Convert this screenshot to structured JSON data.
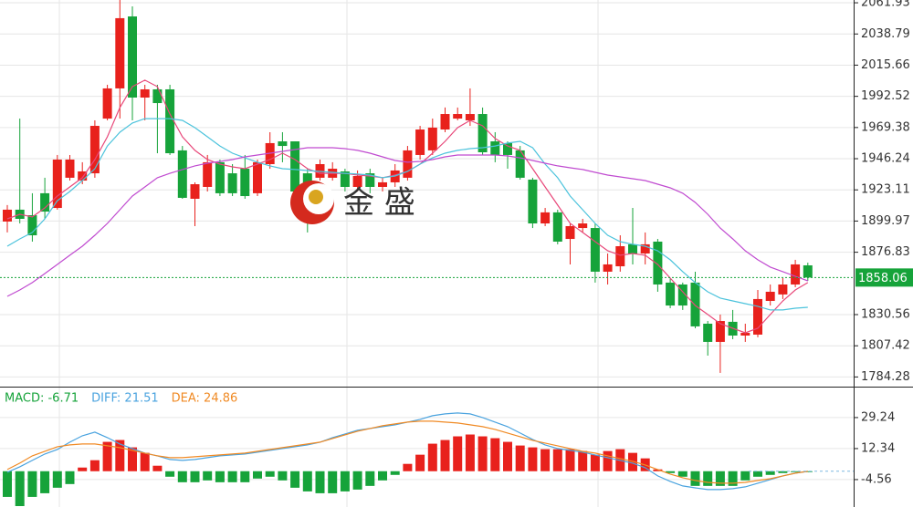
{
  "chart_data": [
    {
      "type": "candlestick",
      "up_color": "#e8211c",
      "down_color": "#16a33a",
      "open": [
        1899.6,
        1908.4,
        1904.3,
        1920.6,
        1909.7,
        1932.1,
        1930.0,
        1935.4,
        1976.0,
        1998.4,
        2051.8,
        1991.6,
        1997.7,
        1997.7,
        1952.4,
        1916.5,
        1925.3,
        1943.6,
        1935.4,
        1938.8,
        1920.6,
        1942.2,
        1959.1,
        1959.1,
        1935.4,
        1932.1,
        1932.1,
        1936.8,
        1925.3,
        1935.4,
        1925.3,
        1928.7,
        1932.1,
        1949.0,
        1952.4,
        1967.9,
        1976.0,
        1974.7,
        1979.4,
        1959.1,
        1957.8,
        1952.4,
        1930.7,
        1898.2,
        1906.4,
        1886.7,
        1894.8,
        1894.8,
        1862.4,
        1866.4,
        1882.7,
        1875.9,
        1884.7,
        1854.3,
        1852.9,
        1854.3,
        1823.8,
        1810.3,
        1825.2,
        1815.0,
        1815.7,
        1840.7,
        1845.5,
        1852.9,
        1867.1
      ],
      "high": [
        1911.8,
        1976.0,
        1920.6,
        1932.1,
        1949.0,
        1949.0,
        1943.6,
        1974.7,
        2001.1,
        2064.0,
        2059.3,
        2001.1,
        2001.1,
        2001.1,
        1955.7,
        1928.7,
        1949.0,
        1945.6,
        1942.2,
        1949.0,
        1945.6,
        1965.9,
        1965.9,
        1959.1,
        1938.8,
        1945.6,
        1943.6,
        1938.8,
        1937.5,
        1938.8,
        1932.1,
        1942.2,
        1955.7,
        1970.6,
        1976.0,
        1984.2,
        1984.2,
        1998.4,
        1984.2,
        1965.9,
        1959.1,
        1955.7,
        1932.1,
        1909.7,
        1908.4,
        1898.2,
        1901.6,
        1898.2,
        1875.9,
        1889.4,
        1909.7,
        1891.5,
        1886.7,
        1857.6,
        1854.3,
        1862.4,
        1825.8,
        1830.6,
        1834.0,
        1823.8,
        1848.8,
        1852.9,
        1857.6,
        1871.2,
        1869.1
      ],
      "low": [
        1891.5,
        1898.2,
        1884.7,
        1901.6,
        1908.4,
        1930.0,
        1927.3,
        1932.1,
        1974.7,
        1976.0,
        1974.7,
        1974.7,
        1950.3,
        1949.0,
        1916.5,
        1896.2,
        1921.9,
        1918.5,
        1918.5,
        1916.5,
        1918.5,
        1938.8,
        1943.6,
        1920.6,
        1891.5,
        1930.0,
        1930.0,
        1921.9,
        1921.9,
        1920.6,
        1921.9,
        1925.3,
        1930.0,
        1945.6,
        1949.0,
        1965.9,
        1974.7,
        1970.6,
        1949.0,
        1943.6,
        1938.8,
        1930.7,
        1894.8,
        1896.2,
        1882.7,
        1867.8,
        1891.5,
        1854.3,
        1852.9,
        1862.4,
        1867.8,
        1867.8,
        1847.5,
        1835.3,
        1834.0,
        1820.4,
        1800.1,
        1787.3,
        1812.3,
        1810.3,
        1813.7,
        1837.3,
        1842.1,
        1850.9,
        1855.6
      ],
      "close": [
        1908.4,
        1901.6,
        1889.4,
        1907.0,
        1945.6,
        1945.6,
        1936.8,
        1970.6,
        1998.4,
        2050.5,
        1991.6,
        1997.7,
        1987.5,
        1950.3,
        1917.2,
        1927.3,
        1943.6,
        1920.6,
        1920.6,
        1918.5,
        1943.6,
        1957.8,
        1955.7,
        1921.9,
        1907.0,
        1942.2,
        1938.8,
        1925.3,
        1933.4,
        1925.3,
        1928.7,
        1937.5,
        1952.4,
        1967.9,
        1969.3,
        1979.4,
        1979.4,
        1979.4,
        1951.0,
        1949.0,
        1949.0,
        1932.1,
        1898.2,
        1906.4,
        1884.7,
        1896.2,
        1898.2,
        1862.4,
        1867.8,
        1881.3,
        1875.9,
        1882.7,
        1852.9,
        1837.3,
        1837.3,
        1821.8,
        1810.3,
        1825.8,
        1815.0,
        1817.0,
        1842.1,
        1847.5,
        1852.9,
        1867.8,
        1858.06
      ],
      "series": [
        {
          "color": "#e8487a",
          "values": [
            1901.6,
            1905.0,
            1903.0,
            1909.7,
            1918.5,
            1925.3,
            1932.1,
            1945.6,
            1962.5,
            1984.2,
            1999.7,
            2004.5,
            1999.7,
            1979.4,
            1962.5,
            1952.4,
            1945.6,
            1942.2,
            1940.2,
            1938.8,
            1942.2,
            1945.6,
            1950.3,
            1945.6,
            1938.8,
            1935.4,
            1935.4,
            1935.4,
            1934.1,
            1933.4,
            1932.1,
            1934.1,
            1936.8,
            1942.2,
            1950.3,
            1959.1,
            1969.3,
            1974.7,
            1970.6,
            1961.2,
            1955.7,
            1952.4,
            1938.8,
            1925.3,
            1911.8,
            1898.2,
            1891.5,
            1884.7,
            1877.9,
            1874.6,
            1875.9,
            1874.6,
            1867.8,
            1857.6,
            1847.5,
            1837.3,
            1830.6,
            1823.8,
            1820.4,
            1817.0,
            1820.4,
            1830.6,
            1840.7,
            1848.8,
            1854.3
          ]
        },
        {
          "color": "#4cc3dc",
          "values": [
            1881.3,
            1886.7,
            1891.5,
            1901.6,
            1915.1,
            1921.9,
            1930.0,
            1938.8,
            1955.7,
            1965.9,
            1972.7,
            1976.0,
            1976.0,
            1976.0,
            1974.7,
            1969.3,
            1962.5,
            1955.7,
            1950.3,
            1946.9,
            1943.6,
            1940.9,
            1938.8,
            1938.2,
            1937.5,
            1936.8,
            1936.1,
            1935.4,
            1934.8,
            1934.1,
            1932.1,
            1933.4,
            1936.8,
            1942.2,
            1946.9,
            1950.3,
            1952.4,
            1953.7,
            1954.4,
            1955.7,
            1957.8,
            1959.1,
            1954.4,
            1942.2,
            1932.1,
            1918.5,
            1908.4,
            1898.2,
            1889.4,
            1884.7,
            1882.7,
            1881.3,
            1877.9,
            1871.2,
            1862.4,
            1854.3,
            1847.5,
            1842.8,
            1840.7,
            1838.7,
            1836.7,
            1834.0,
            1834.0,
            1835.3,
            1836.0
          ]
        },
        {
          "color": "#c04bd0",
          "values": [
            1844.1,
            1848.8,
            1854.3,
            1861.0,
            1867.8,
            1874.6,
            1881.3,
            1889.4,
            1898.2,
            1908.4,
            1918.5,
            1925.3,
            1932.1,
            1935.4,
            1938.2,
            1940.9,
            1942.9,
            1944.2,
            1945.6,
            1947.6,
            1949.0,
            1950.3,
            1951.7,
            1953.0,
            1954.4,
            1954.4,
            1954.4,
            1953.7,
            1952.4,
            1950.3,
            1947.6,
            1944.9,
            1943.6,
            1944.2,
            1945.6,
            1947.6,
            1949.0,
            1949.0,
            1949.0,
            1949.0,
            1948.3,
            1946.9,
            1944.9,
            1942.9,
            1940.9,
            1939.5,
            1938.2,
            1936.1,
            1934.1,
            1932.7,
            1931.4,
            1930.0,
            1927.3,
            1924.6,
            1920.6,
            1913.8,
            1905.0,
            1894.8,
            1886.7,
            1877.9,
            1871.2,
            1865.8,
            1862.4,
            1859.0,
            1855.6
          ]
        }
      ],
      "ylim": [
        1777.1,
        2064.0
      ],
      "yticks": [
        2061.93,
        2038.79,
        2015.66,
        1992.52,
        1969.38,
        1946.24,
        1923.11,
        1899.97,
        1876.83,
        1830.56,
        1807.42,
        1784.28
      ],
      "price_line_color": "#16a33a",
      "watermark": "金 盛"
    },
    {
      "type": "macd",
      "up_color": "#e8211c",
      "down_color": "#16a33a",
      "legend": [
        {
          "text": "MACD: -6.71",
          "color": "#16a33a"
        },
        {
          "text": "DIFF: 21.51",
          "color": "#4aa3df"
        },
        {
          "text": "DEA: 24.86",
          "color": "#f08a24"
        }
      ],
      "histogram": [
        -14,
        -19,
        -14,
        -12,
        -9,
        -7,
        2,
        6,
        16,
        17,
        13,
        10,
        3,
        -3,
        -6,
        -6,
        -5,
        -6,
        -6,
        -6,
        -4,
        -3,
        -5,
        -9,
        -11,
        -12,
        -12,
        -11,
        -10,
        -8,
        -5,
        -2,
        4,
        9,
        15,
        17,
        19,
        20,
        19,
        18,
        16,
        14,
        13,
        12,
        12,
        12,
        11,
        9,
        11,
        12,
        10,
        7,
        1,
        -1,
        -3,
        -8,
        -8,
        -8,
        -8,
        -5,
        -3,
        -2,
        -1,
        -0.5,
        -0.5
      ],
      "series": [
        {
          "color": "#4aa3df",
          "values": [
            -0.58,
            2.4,
            5.88,
            9.36,
            11.84,
            15.82,
            19.3,
            21.29,
            18.31,
            14.83,
            12.34,
            9.86,
            8.37,
            6.38,
            5.88,
            6.38,
            7.37,
            8.37,
            8.86,
            9.36,
            10.35,
            11.35,
            12.34,
            13.34,
            14.33,
            15.82,
            18.31,
            20.29,
            22.28,
            23.28,
            24.27,
            25.27,
            26.75,
            28.25,
            30.23,
            31.23,
            31.73,
            31.23,
            29.24,
            26.75,
            24.27,
            20.79,
            17.31,
            14.33,
            12.34,
            11.35,
            10.35,
            8.86,
            7.37,
            5.88,
            4.39,
            1.9,
            -2.57,
            -5.56,
            -8.04,
            -9.04,
            -10.02,
            -10.02,
            -9.53,
            -8.54,
            -6.55,
            -4.56,
            -2.57,
            -1.08,
            -0.09
          ]
        },
        {
          "color": "#f08a24",
          "values": [
            0.91,
            4.39,
            8.37,
            10.85,
            13.34,
            14.33,
            14.83,
            14.83,
            13.83,
            12.84,
            11.35,
            9.86,
            8.37,
            7.37,
            7.37,
            7.87,
            8.37,
            8.86,
            9.36,
            9.86,
            10.85,
            11.84,
            12.84,
            13.83,
            14.83,
            15.82,
            17.81,
            19.8,
            21.79,
            23.28,
            24.77,
            25.76,
            26.75,
            27.25,
            27.25,
            26.75,
            26.26,
            25.27,
            24.27,
            22.78,
            20.79,
            18.8,
            16.81,
            15.32,
            13.83,
            12.34,
            10.85,
            9.86,
            8.37,
            6.88,
            5.39,
            3.4,
            0.91,
            -1.58,
            -3.57,
            -5.06,
            -6.06,
            -6.55,
            -6.55,
            -6.06,
            -5.06,
            -4.07,
            -2.57,
            -1.08,
            -0.09
          ]
        }
      ],
      "ylim": [
        -19.5,
        45.6
      ],
      "yticks": [
        29.24,
        12.34,
        -4.56
      ]
    }
  ]
}
